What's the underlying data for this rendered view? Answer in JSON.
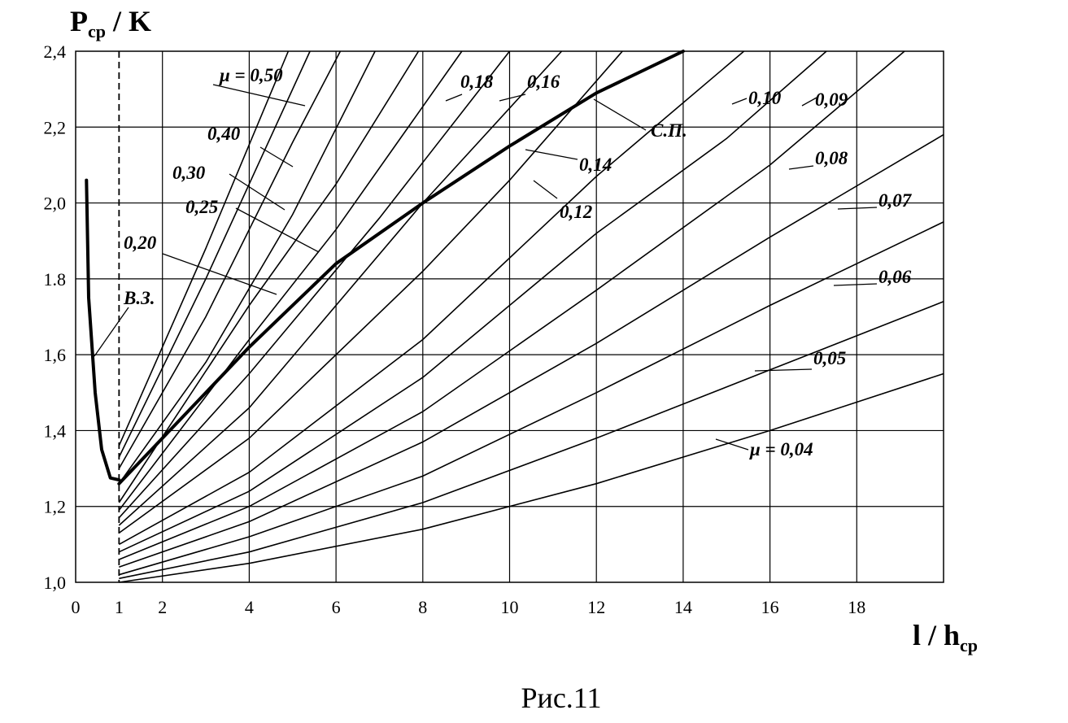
{
  "figure": {
    "caption": "Рис.11"
  },
  "chart_data": {
    "type": "line",
    "title": "",
    "ylabel_main": "P",
    "ylabel_sub": "ср",
    "ylabel_tail": " / K",
    "xlabel_main": "l / h",
    "xlabel_sub": "ср",
    "xlim": [
      0,
      20
    ],
    "ylim": [
      1.0,
      2.4
    ],
    "grid": true,
    "x_tick_labels": [
      {
        "x": 0,
        "label": "0"
      },
      {
        "x": 1,
        "label": "1"
      },
      {
        "x": 2,
        "label": "2"
      },
      {
        "x": 4,
        "label": "4"
      },
      {
        "x": 6,
        "label": "6"
      },
      {
        "x": 8,
        "label": "8"
      },
      {
        "x": 10,
        "label": "10"
      },
      {
        "x": 12,
        "label": "12"
      },
      {
        "x": 14,
        "label": "14"
      },
      {
        "x": 16,
        "label": "16"
      },
      {
        "x": 18,
        "label": "18"
      }
    ],
    "y_tick_labels": [
      {
        "y": 1.0,
        "label": "1,0"
      },
      {
        "y": 1.2,
        "label": "1,2"
      },
      {
        "y": 1.4,
        "label": "1,4"
      },
      {
        "y": 1.6,
        "label": "1,6"
      },
      {
        "y": 1.8,
        "label": "1.8"
      },
      {
        "y": 2.0,
        "label": "2,0"
      },
      {
        "y": 2.2,
        "label": "2,2"
      },
      {
        "y": 2.4,
        "label": "2,4"
      }
    ],
    "reference_line": {
      "x": 1,
      "style": "dashed"
    },
    "series": [
      {
        "name": "μ = 0,04",
        "label": "μ = 0,04",
        "mu": 0.04,
        "x": [
          1,
          4,
          8,
          12,
          16,
          20
        ],
        "y": [
          1.0,
          1.05,
          1.14,
          1.26,
          1.4,
          1.55
        ]
      },
      {
        "name": "0,05",
        "label": "0,05",
        "mu": 0.05,
        "x": [
          1,
          4,
          8,
          12,
          16,
          20
        ],
        "y": [
          1.01,
          1.08,
          1.21,
          1.38,
          1.56,
          1.74
        ]
      },
      {
        "name": "0,06",
        "label": "0,06",
        "mu": 0.06,
        "x": [
          1,
          4,
          8,
          12,
          16,
          20
        ],
        "y": [
          1.02,
          1.12,
          1.28,
          1.5,
          1.73,
          1.95
        ]
      },
      {
        "name": "0,07",
        "label": "0,07",
        "mu": 0.07,
        "x": [
          1,
          4,
          8,
          12,
          16,
          20
        ],
        "y": [
          1.04,
          1.16,
          1.37,
          1.63,
          1.91,
          2.18
        ]
      },
      {
        "name": "0,08",
        "label": "0,08",
        "mu": 0.08,
        "x": [
          1,
          4,
          8,
          12,
          16,
          19.1
        ],
        "y": [
          1.06,
          1.2,
          1.45,
          1.77,
          2.1,
          2.4
        ]
      },
      {
        "name": "0,09",
        "label": "0,09",
        "mu": 0.09,
        "x": [
          1,
          4,
          8,
          12,
          15,
          17.3
        ],
        "y": [
          1.08,
          1.24,
          1.54,
          1.92,
          2.17,
          2.4
        ]
      },
      {
        "name": "0,10",
        "label": "0,10",
        "mu": 0.1,
        "x": [
          1,
          4,
          8,
          12,
          15.4
        ],
        "y": [
          1.1,
          1.29,
          1.64,
          2.07,
          2.4
        ]
      },
      {
        "name": "0,12",
        "label": "0,12",
        "mu": 0.12,
        "x": [
          1,
          4,
          8,
          10,
          12.6
        ],
        "y": [
          1.13,
          1.38,
          1.82,
          2.06,
          2.4
        ]
      },
      {
        "name": "0,14",
        "label": "0,14",
        "mu": 0.14,
        "x": [
          1,
          4,
          8,
          11.2
        ],
        "y": [
          1.15,
          1.46,
          2.0,
          2.4
        ]
      },
      {
        "name": "0,16",
        "label": "0,16",
        "mu": 0.16,
        "x": [
          1,
          4,
          7,
          10.0
        ],
        "y": [
          1.17,
          1.55,
          1.96,
          2.4
        ]
      },
      {
        "name": "0,18",
        "label": "0,18",
        "mu": 0.18,
        "x": [
          1,
          4,
          6,
          8.9
        ],
        "y": [
          1.19,
          1.64,
          1.93,
          2.4
        ]
      },
      {
        "name": "0,20",
        "label": "0,20",
        "mu": 0.2,
        "x": [
          1,
          4,
          6,
          7.9
        ],
        "y": [
          1.21,
          1.73,
          2.05,
          2.4
        ]
      },
      {
        "name": "0,25",
        "label": "0,25",
        "mu": 0.25,
        "x": [
          1,
          3,
          5,
          6.9
        ],
        "y": [
          1.26,
          1.58,
          1.97,
          2.4
        ]
      },
      {
        "name": "0,30",
        "label": "0,30",
        "mu": 0.3,
        "x": [
          1,
          3,
          5,
          6.1
        ],
        "y": [
          1.3,
          1.7,
          2.16,
          2.4
        ]
      },
      {
        "name": "0,40",
        "label": "0,40",
        "mu": 0.4,
        "x": [
          1,
          3,
          5.4
        ],
        "y": [
          1.33,
          1.8,
          2.4
        ]
      },
      {
        "name": "μ = 0,50",
        "label": "μ = 0,50",
        "mu": 0.5,
        "x": [
          1,
          3,
          4.9
        ],
        "y": [
          1.36,
          1.88,
          2.4
        ]
      }
    ],
    "boundary_curves": [
      {
        "name": "В.З.",
        "label": "В.З.",
        "x": [
          0.25,
          0.3,
          0.45,
          0.6,
          0.8,
          1.0
        ],
        "y": [
          2.06,
          1.75,
          1.5,
          1.35,
          1.275,
          1.27
        ]
      },
      {
        "name": "С.П.",
        "label": "С.П.",
        "x": [
          1,
          2,
          4,
          6,
          8,
          10,
          12,
          14
        ],
        "y": [
          1.26,
          1.38,
          1.62,
          1.84,
          2.0,
          2.15,
          2.29,
          2.4
        ]
      }
    ]
  }
}
